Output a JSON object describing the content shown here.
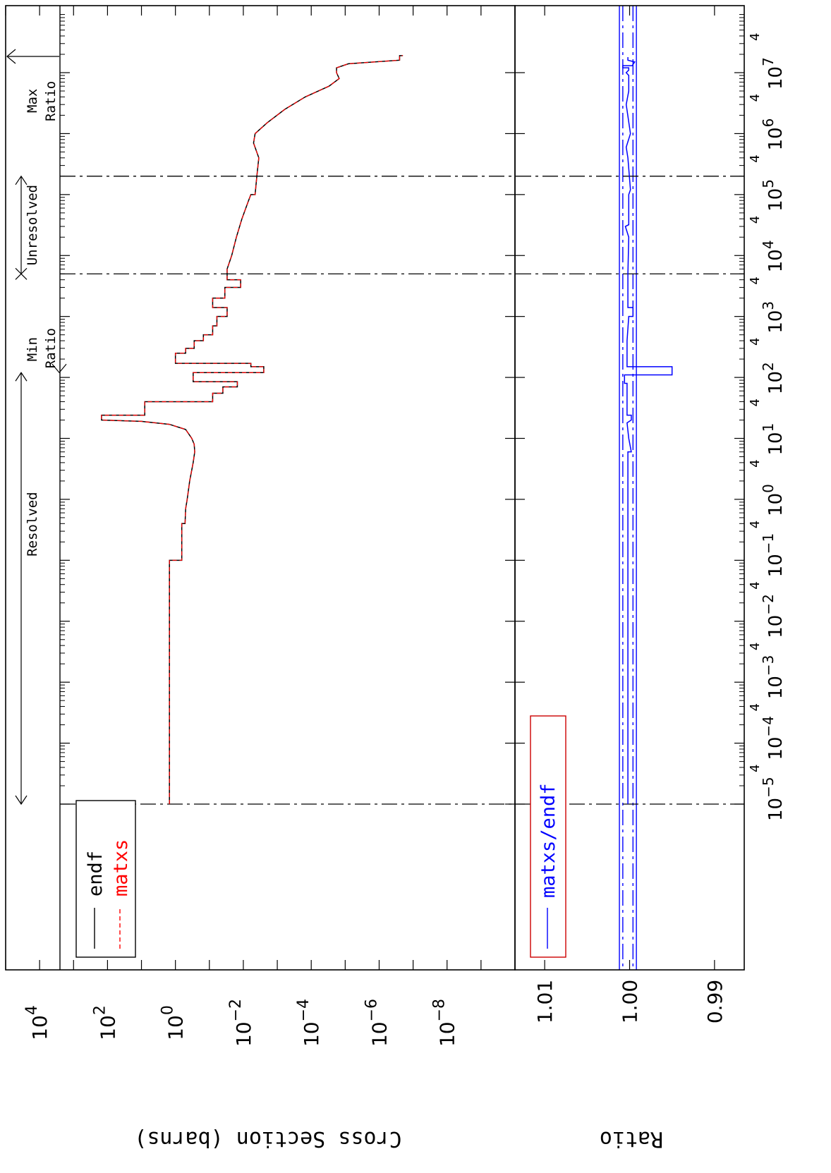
{
  "chart_data": {
    "type": "line",
    "orientation": "rotated-90",
    "x_axis": {
      "scale": "log",
      "range": [
        1e-05,
        20000000
      ],
      "tick_labels": [
        {
          "value": 1e-05,
          "base": "10",
          "exp": "−5"
        },
        {
          "value": 0.0001,
          "base": "10",
          "exp": "−4"
        },
        {
          "value": 0.001,
          "base": "10",
          "exp": "−3"
        },
        {
          "value": 0.01,
          "base": "10",
          "exp": "−2"
        },
        {
          "value": 0.1,
          "base": "10",
          "exp": "−1"
        },
        {
          "value": 1,
          "base": "10",
          "exp": "0"
        },
        {
          "value": 10,
          "base": "10",
          "exp": "1"
        },
        {
          "value": 100,
          "base": "10",
          "exp": "2"
        },
        {
          "value": 1000,
          "base": "10",
          "exp": "3"
        },
        {
          "value": 10000,
          "base": "10",
          "exp": "4"
        },
        {
          "value": 100000,
          "base": "10",
          "exp": "5"
        },
        {
          "value": 1000000,
          "base": "10",
          "exp": "6"
        },
        {
          "value": 10000000,
          "base": "10",
          "exp": "7"
        }
      ],
      "minor_label": "4",
      "minor_label_values": [
        4e-05,
        0.0004,
        0.004,
        0.04,
        0.4,
        4,
        40,
        400,
        4000,
        40000,
        400000,
        4000000,
        40000000
      ]
    },
    "top_panel": {
      "ylabel": "Cross Section (barns)",
      "yscale": "log",
      "ylim": [
        1e-10,
        100000.0
      ],
      "tick_labels": [
        {
          "value": 10000,
          "base": "10",
          "exp": "4"
        },
        {
          "value": 100,
          "base": "10",
          "exp": "2"
        },
        {
          "value": 1,
          "base": "10",
          "exp": "0"
        },
        {
          "value": 0.01,
          "base": "10",
          "exp": "−2"
        },
        {
          "value": 0.0001,
          "base": "10",
          "exp": "−4"
        },
        {
          "value": 1e-06,
          "base": "10",
          "exp": "−6"
        },
        {
          "value": 1e-08,
          "base": "10",
          "exp": "−8"
        }
      ],
      "legend": {
        "position": "bottom-left",
        "entries": [
          {
            "name": "endf",
            "color": "#000000",
            "dash": "solid"
          },
          {
            "name": "matxs",
            "color": "#ff0000",
            "dash": "dashed"
          }
        ]
      },
      "series": [
        {
          "name": "endf",
          "points": [
            [
              1e-05,
              1.5
            ],
            [
              0.1,
              1.5
            ],
            [
              0.1,
              0.65
            ],
            [
              0.4,
              0.65
            ],
            [
              0.4,
              0.52
            ],
            [
              0.7,
              0.5
            ],
            [
              1,
              0.45
            ],
            [
              2,
              0.38
            ],
            [
              4,
              0.3
            ],
            [
              6,
              0.27
            ],
            [
              8,
              0.28
            ],
            [
              10,
              0.33
            ],
            [
              14,
              0.5
            ],
            [
              17,
              1.5
            ],
            [
              19,
              10
            ],
            [
              20,
              150
            ],
            [
              24,
              150
            ],
            [
              24,
              8
            ],
            [
              40,
              8
            ],
            [
              40,
              0.08
            ],
            [
              55,
              0.08
            ],
            [
              55,
              0.04
            ],
            [
              70,
              0.04
            ],
            [
              70,
              0.015
            ],
            [
              85,
              0.015
            ],
            [
              85,
              0.3
            ],
            [
              120,
              0.3
            ],
            [
              120,
              0.0025
            ],
            [
              150,
              0.0025
            ],
            [
              150,
              0.006
            ],
            [
              170,
              0.006
            ],
            [
              170,
              1
            ],
            [
              250,
              1
            ],
            [
              250,
              0.5
            ],
            [
              300,
              0.5
            ],
            [
              300,
              0.28
            ],
            [
              400,
              0.28
            ],
            [
              400,
              0.15
            ],
            [
              500,
              0.15
            ],
            [
              500,
              0.08
            ],
            [
              700,
              0.08
            ],
            [
              700,
              0.06
            ],
            [
              1000,
              0.06
            ],
            [
              1000,
              0.03
            ],
            [
              1400,
              0.03
            ],
            [
              1400,
              0.08
            ],
            [
              2000,
              0.08
            ],
            [
              2000,
              0.035
            ],
            [
              3000,
              0.035
            ],
            [
              3000,
              0.012
            ],
            [
              4000,
              0.012
            ],
            [
              4000,
              0.03
            ],
            [
              6000,
              0.03
            ],
            [
              10000,
              0.022
            ],
            [
              20000,
              0.016
            ],
            [
              40000,
              0.011
            ],
            [
              80000,
              0.007
            ],
            [
              100000,
              0.006
            ],
            [
              100000,
              0.0045
            ],
            [
              200000,
              0.004
            ],
            [
              400000,
              0.0035
            ],
            [
              700000,
              0.005
            ],
            [
              1000000,
              0.0045
            ],
            [
              1500000,
              0.002
            ],
            [
              2500000,
              0.0006
            ],
            [
              4000000,
              0.00015
            ],
            [
              6000000,
              3e-05
            ],
            [
              8000000,
              1.5e-05
            ],
            [
              10000000,
              1.8e-05
            ],
            [
              12000000,
              1.8e-05
            ],
            [
              14000000,
              8e-06
            ],
            [
              16000000,
              2.5e-07
            ],
            [
              19000000,
              2.5e-07
            ],
            [
              19000000,
              2e-07
            ]
          ]
        },
        {
          "name": "matxs",
          "same_as": "endf"
        }
      ]
    },
    "bottom_panel": {
      "ylabel": "Ratio",
      "ylim": [
        0.9865,
        1.0135
      ],
      "tick_labels": [
        {
          "value": 1.01,
          "text": "1.01"
        },
        {
          "value": 1.0,
          "text": "1.00"
        },
        {
          "value": 0.99,
          "text": "0.99"
        }
      ],
      "legend": {
        "position": "bottom-left",
        "entries": [
          {
            "name": "matxs/endf",
            "color": "#0000ff",
            "dash": "solid"
          }
        ]
      },
      "reference_lines": [
        {
          "value": 1.0012,
          "color": "#0000ff",
          "dash": "solid"
        },
        {
          "value": 1.0008,
          "color": "#0000ff",
          "dash": "dashdot"
        },
        {
          "value": 0.9996,
          "color": "#0000ff",
          "dash": "dashdot"
        },
        {
          "value": 0.9992,
          "color": "#0000ff",
          "dash": "solid"
        }
      ],
      "series": [
        {
          "name": "matxs/endf",
          "points": [
            [
              1e-05,
              1.0002
            ],
            [
              6,
              1.0002
            ],
            [
              6,
              0.9998
            ],
            [
              10,
              1.0001
            ],
            [
              18,
              1.0003
            ],
            [
              20,
              0.9998
            ],
            [
              24,
              0.9998
            ],
            [
              24,
              1.0003
            ],
            [
              80,
              1.0003
            ],
            [
              80,
              1.0006
            ],
            [
              110,
              1.0006
            ],
            [
              110,
              0.995
            ],
            [
              150,
              0.995
            ],
            [
              150,
              1.0003
            ],
            [
              400,
              1.0003
            ],
            [
              1000,
              1.0001
            ],
            [
              1000,
              0.9996
            ],
            [
              1400,
              0.9996
            ],
            [
              1400,
              1.0002
            ],
            [
              5000,
              1.0002
            ],
            [
              20000,
              1.0001
            ],
            [
              30000,
              1.0005
            ],
            [
              32000,
              1.0001
            ],
            [
              100000,
              1.0001
            ],
            [
              120000,
              0.9999
            ],
            [
              400000,
              1.0002
            ],
            [
              600000,
              1.0004
            ],
            [
              1000000,
              0.9999
            ],
            [
              3000000,
              1.0004
            ],
            [
              5000000,
              1.0001
            ],
            [
              9000000,
              1.0001
            ],
            [
              10000000,
              1.0004
            ],
            [
              11000000,
              1.0001
            ],
            [
              12000000,
              1.0001
            ],
            [
              12000000,
              1.0008
            ],
            [
              13000000,
              1.0008
            ],
            [
              13000000,
              0.9997
            ],
            [
              15000000,
              0.9994
            ],
            [
              16000000,
              1.0002
            ],
            [
              18000000,
              1.0002
            ]
          ]
        }
      ]
    },
    "vertical_lines": [
      {
        "x": 1e-05,
        "dash": "dashdot"
      },
      {
        "x": 5000,
        "dash": "dashdot"
      },
      {
        "x": 200000,
        "dash": "dashdot"
      }
    ],
    "region_annotations": {
      "resolved": "Resolved",
      "unresolved": "Unresolved",
      "min_ratio_line1": "Min",
      "min_ratio_line2": "Ratio",
      "max_ratio_line1": "Max",
      "max_ratio_line2": "Ratio"
    },
    "region_bounds": {
      "resolved": [
        1e-05,
        120
      ],
      "unresolved": [
        5000,
        200000
      ],
      "min_ratio_at": 120,
      "max_ratio_at": 20000000
    }
  }
}
